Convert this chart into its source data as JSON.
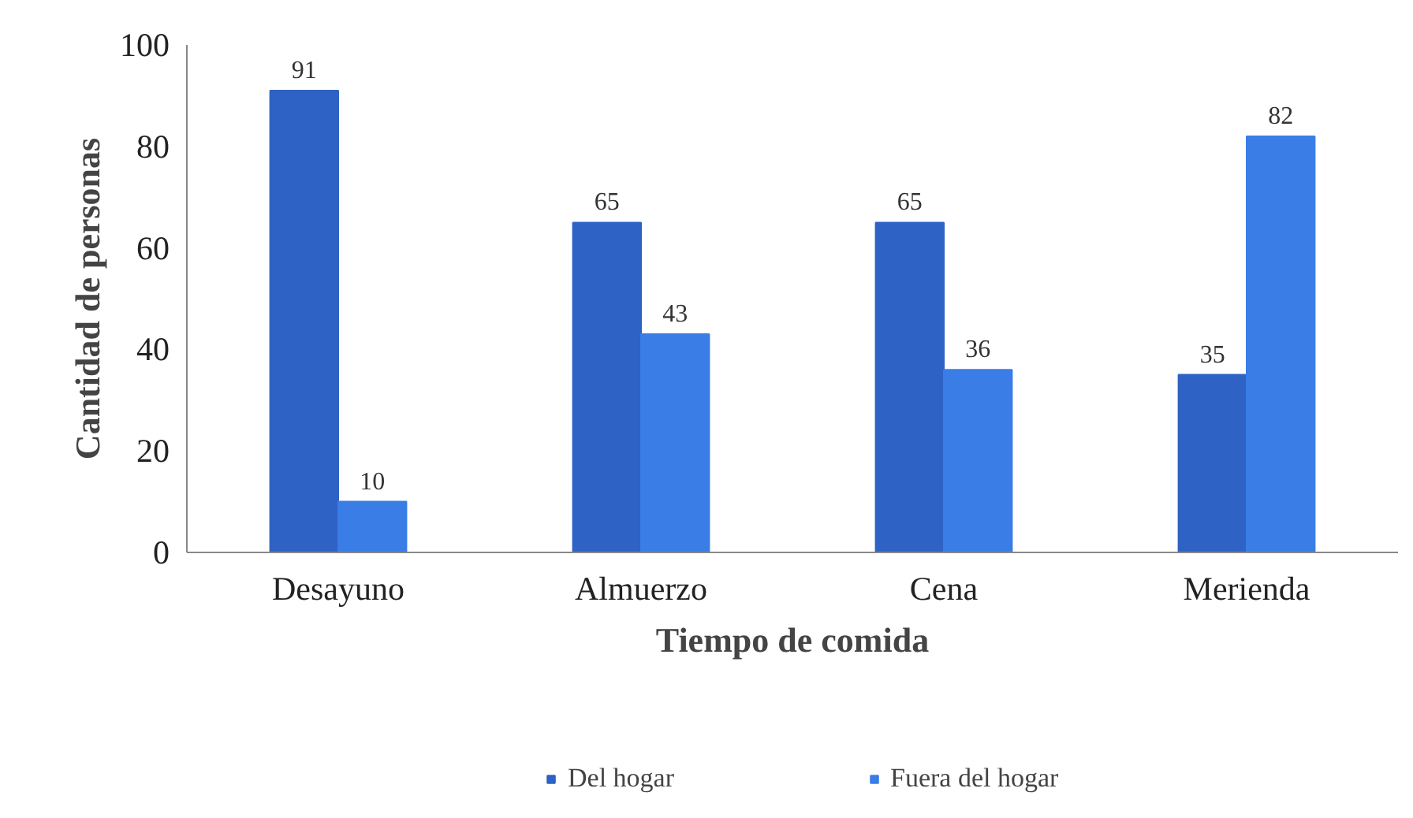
{
  "chart_data": {
    "type": "bar",
    "xlabel": "Tiempo de comida",
    "ylabel": "Cantidad de personas",
    "categories": [
      "Desayuno",
      "Almuerzo",
      "Cena",
      "Merienda"
    ],
    "series": [
      {
        "name": "Del hogar",
        "color": "#2e62c4",
        "values": [
          91,
          65,
          65,
          35
        ]
      },
      {
        "name": "Fuera del hogar",
        "color": "#3a7de6",
        "values": [
          10,
          43,
          36,
          82
        ]
      }
    ],
    "ylim": [
      0,
      100
    ],
    "yticks": [
      0,
      20,
      40,
      60,
      80,
      100
    ],
    "grid": false,
    "legend": "bottom",
    "data_labels": true
  }
}
